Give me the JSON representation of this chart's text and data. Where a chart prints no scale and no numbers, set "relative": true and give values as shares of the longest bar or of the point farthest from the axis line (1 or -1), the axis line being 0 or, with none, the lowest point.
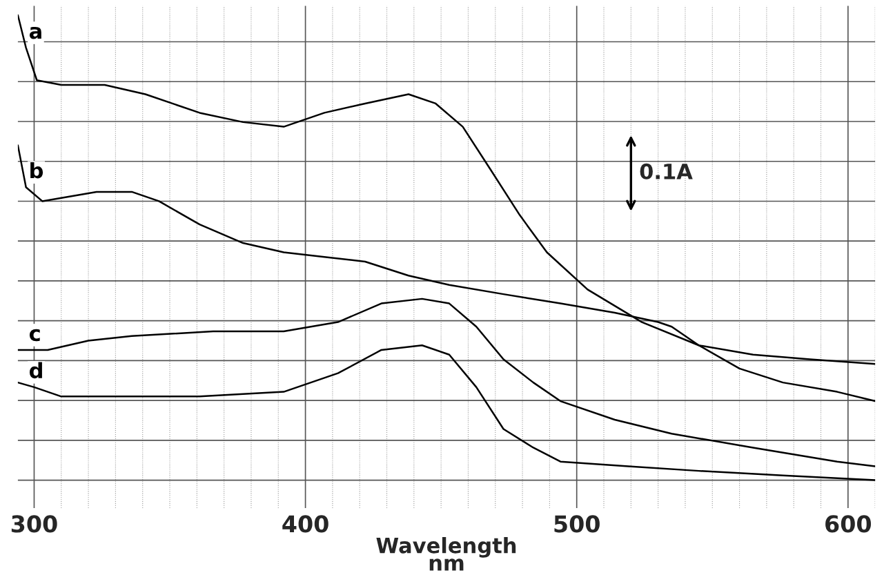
{
  "chart_data": {
    "type": "line",
    "relative": true,
    "xlabel": "Wavelength\nnm",
    "xlim": [
      294,
      610
    ],
    "xticks": [
      300,
      400,
      500,
      600
    ],
    "grid": true,
    "legend": false,
    "tick_labels": "x",
    "annotations": [
      "0.1A"
    ],
    "series": [
      {
        "name": "a",
        "color": "#000000",
        "x": [
          294,
          297,
          301,
          310,
          326,
          341,
          361,
          377,
          392,
          407,
          422,
          438,
          448,
          458,
          468,
          479,
          489,
          504,
          524,
          545,
          565,
          586,
          610
        ],
        "values": [
          1.0,
          0.93,
          0.86,
          0.85,
          0.85,
          0.83,
          0.79,
          0.77,
          0.76,
          0.79,
          0.81,
          0.83,
          0.81,
          0.76,
          0.67,
          0.57,
          0.49,
          0.41,
          0.34,
          0.29,
          0.27,
          0.26,
          0.25
        ]
      },
      {
        "name": "b",
        "color": "#000000",
        "x": [
          294,
          297,
          303,
          313,
          323,
          336,
          346,
          361,
          377,
          392,
          407,
          422,
          438,
          453,
          473,
          494,
          514,
          530,
          535,
          545,
          560,
          576,
          596,
          610
        ],
        "values": [
          0.72,
          0.63,
          0.6,
          0.61,
          0.62,
          0.62,
          0.6,
          0.55,
          0.51,
          0.49,
          0.48,
          0.47,
          0.44,
          0.42,
          0.4,
          0.38,
          0.36,
          0.34,
          0.33,
          0.29,
          0.24,
          0.21,
          0.19,
          0.17
        ]
      },
      {
        "name": "c",
        "color": "#000000",
        "x": [
          294,
          305,
          320,
          336,
          366,
          392,
          412,
          428,
          443,
          453,
          463,
          473,
          484,
          494,
          514,
          535,
          565,
          596,
          610
        ],
        "values": [
          0.28,
          0.28,
          0.3,
          0.31,
          0.32,
          0.32,
          0.34,
          0.38,
          0.39,
          0.38,
          0.33,
          0.26,
          0.21,
          0.17,
          0.13,
          0.1,
          0.07,
          0.04,
          0.03
        ]
      },
      {
        "name": "d",
        "color": "#000000",
        "x": [
          294,
          300,
          310,
          331,
          361,
          392,
          412,
          428,
          443,
          453,
          463,
          473,
          484,
          494,
          519,
          545,
          576,
          610
        ],
        "values": [
          0.21,
          0.2,
          0.18,
          0.18,
          0.18,
          0.19,
          0.23,
          0.28,
          0.29,
          0.27,
          0.2,
          0.11,
          0.07,
          0.04,
          0.03,
          0.02,
          0.01,
          0.0
        ]
      }
    ]
  }
}
